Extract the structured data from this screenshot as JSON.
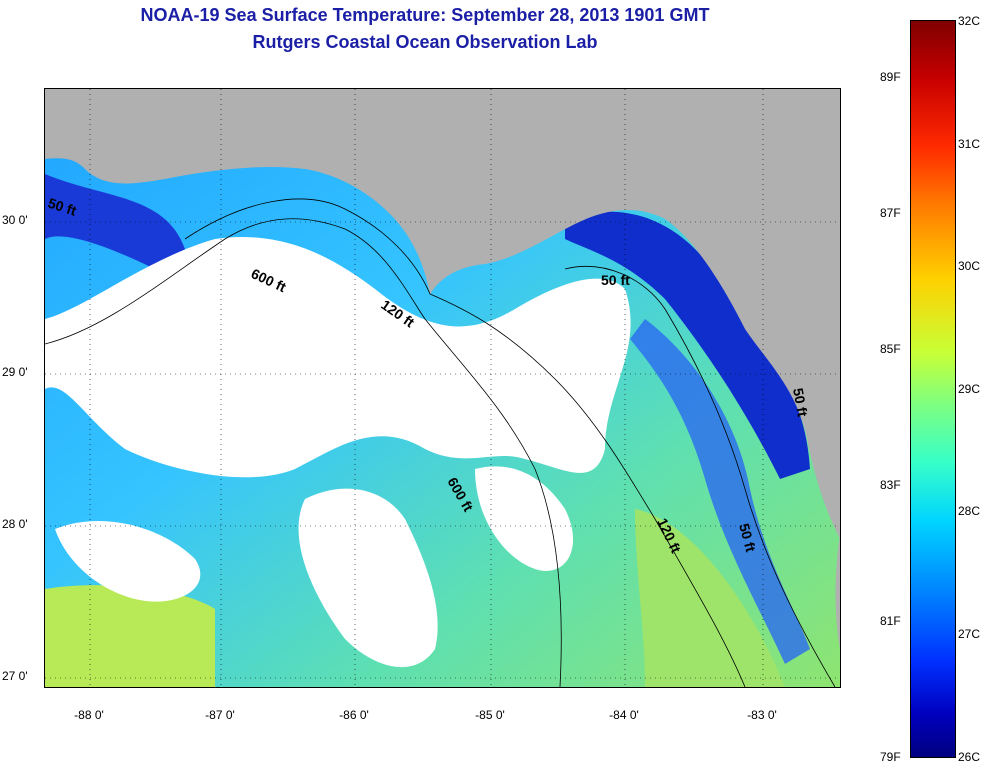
{
  "title_line1": "NOAA-19 Sea Surface Temperature:  September 28, 2013 1901 GMT",
  "title_line2": "Rutgers Coastal Ocean Observation Lab",
  "lat_labels": [
    "30 0'",
    "29 0'",
    "28 0'",
    "27 0'"
  ],
  "lon_labels": [
    "-88 0'",
    "-87 0'",
    "-86 0'",
    "-85 0'",
    "-84 0'",
    "-83 0'"
  ],
  "contour_labels": [
    "50 ft",
    "600 ft",
    "120 ft",
    "50 ft",
    "600 ft",
    "120 ft",
    "50 ft",
    "50 ft"
  ],
  "colorbar": {
    "celsius": [
      "32C",
      "31C",
      "30C",
      "29C",
      "28C",
      "27C",
      "26C"
    ],
    "fahrenheit": [
      "89F",
      "87F",
      "85F",
      "83F",
      "81F",
      "79F"
    ]
  },
  "colors": {
    "land": "#b0b0b0",
    "cloud": "#ffffff",
    "title": "#1b1fa6"
  }
}
